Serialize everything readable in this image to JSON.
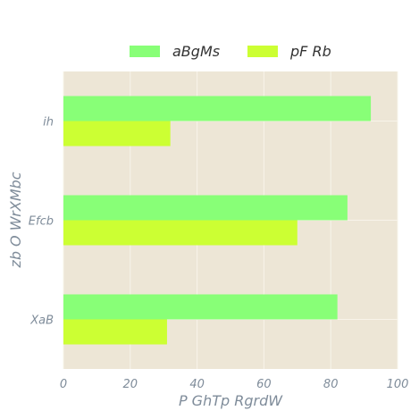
{
  "chart_data": {
    "type": "bar",
    "orientation": "horizontal",
    "categories": [
      "ih",
      "Efcb",
      "XaB"
    ],
    "series": [
      {
        "name": "aBgMs",
        "values": [
          92,
          85,
          82
        ],
        "color": "#88ff77"
      },
      {
        "name": "pF Rb",
        "values": [
          32,
          70,
          31
        ],
        "color": "#ccff33"
      }
    ],
    "xlabel": "P GhTp RgrdW",
    "ylabel": "zb O WrXMbc",
    "xlim": [
      0,
      100
    ],
    "xticks": [
      "0",
      "20",
      "40",
      "60",
      "80",
      "100"
    ],
    "grid": true,
    "legend_position": "top-center",
    "background_color": "#ede6d6",
    "grid_color": "#f8f4ea",
    "text_color": "#7f8c9a"
  }
}
